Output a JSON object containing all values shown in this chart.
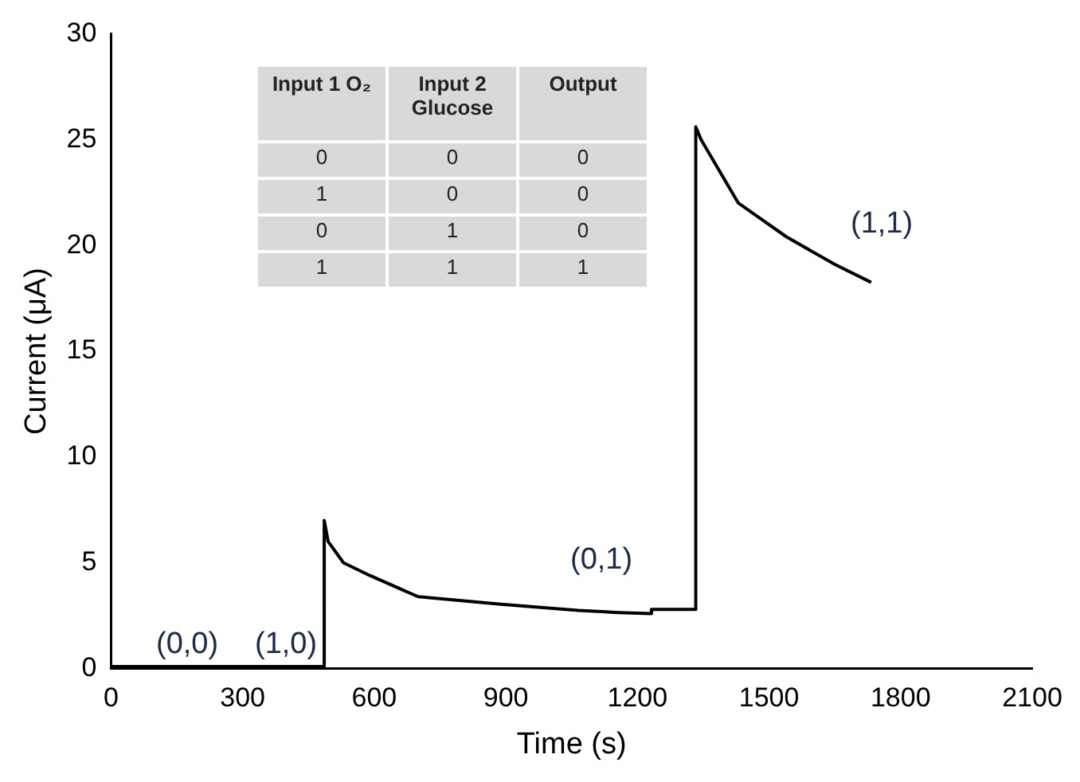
{
  "chart_data": {
    "type": "line",
    "xlabel": "Time (s)",
    "ylabel": "Current (μA)",
    "x": [
      0,
      485,
      486,
      495,
      530,
      590,
      700,
      883,
      1065,
      1157,
      1230,
      1232,
      1332,
      1333,
      1345,
      1430,
      1540,
      1650,
      1733
    ],
    "series": [
      {
        "color": "#000000",
        "values": [
          0.1,
          0.1,
          7.0,
          6.0,
          5.0,
          4.4,
          3.4,
          3.05,
          2.75,
          2.65,
          2.6,
          2.8,
          2.8,
          25.6,
          25.0,
          22.0,
          20.4,
          19.1,
          18.25
        ]
      }
    ],
    "xlim": [
      0,
      2100
    ],
    "xticks": [
      0,
      300,
      600,
      900,
      1200,
      1500,
      1800,
      2100
    ],
    "ylim": [
      0,
      30
    ],
    "yticks": [
      0,
      5,
      10,
      15,
      20,
      25,
      30
    ],
    "grid": false,
    "legend": false,
    "marker": "none",
    "line_style": "solid",
    "annotations": [
      "(0,0)",
      "(1,0)",
      "(0,1)",
      "(1,1)",
      "Input 1 O₂",
      "Input 2 Glucose",
      "Output",
      "0",
      "0",
      "0",
      "1",
      "0",
      "0",
      "0",
      "1",
      "0",
      "1",
      "1",
      "1"
    ]
  }
}
